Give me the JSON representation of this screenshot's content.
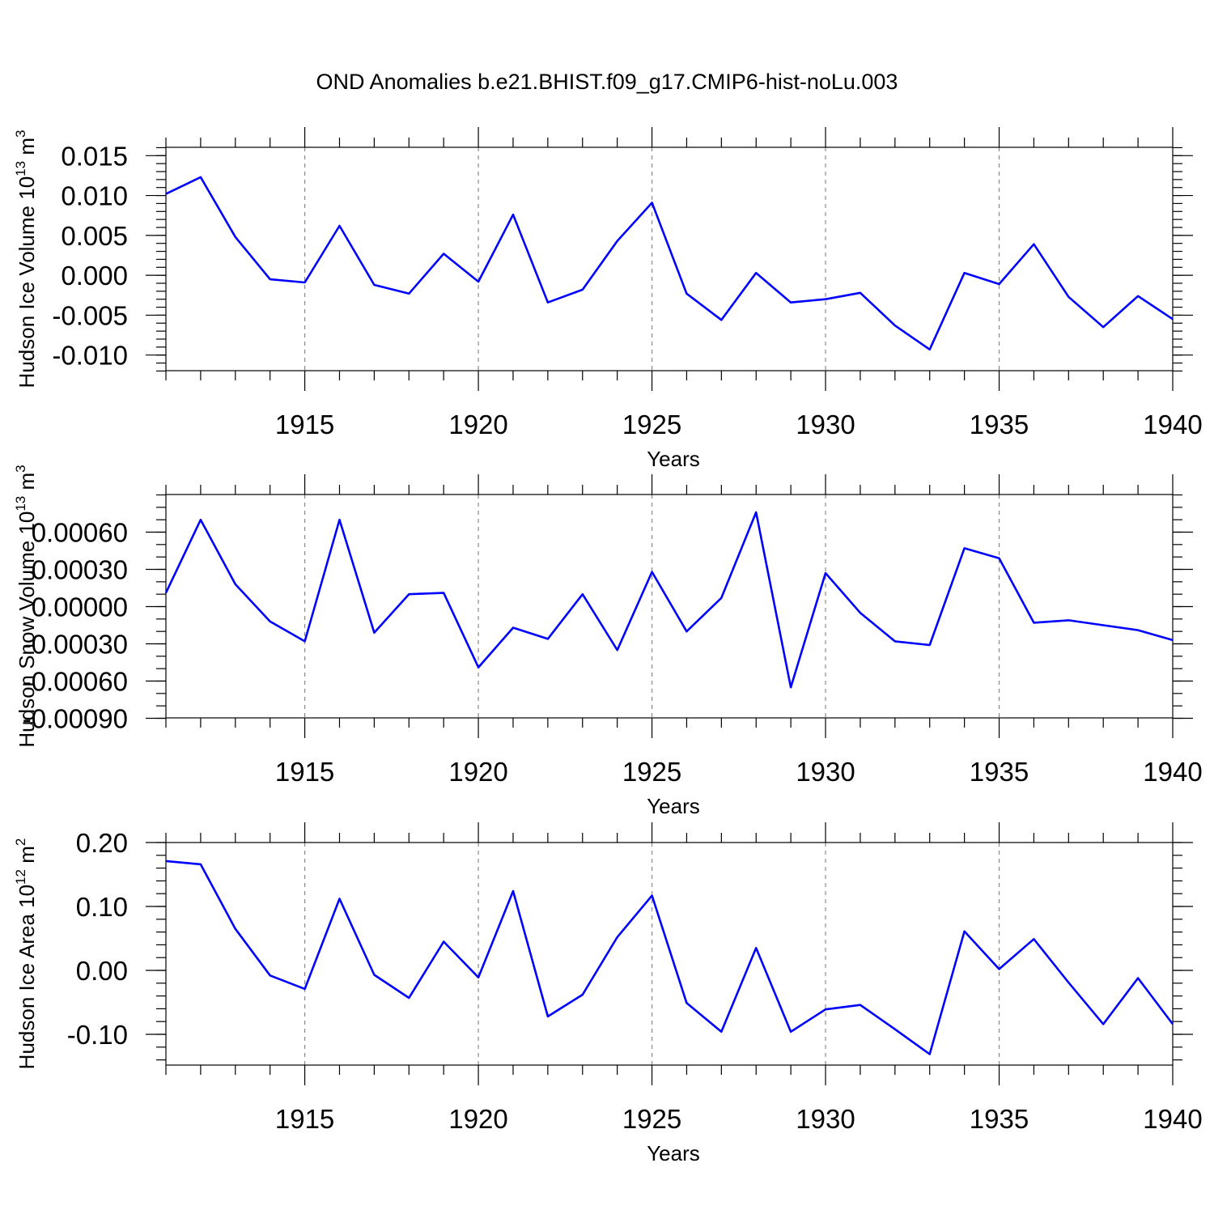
{
  "title": "OND Anomalies b.e21.BHIST.f09_g17.CMIP6-hist-noLu.003",
  "line_color": "#0000ff",
  "chart_data": [
    {
      "type": "line",
      "ylabel_base": "Hudson Ice Volume 10",
      "ylabel_exp": "13",
      "ylabel_unit": " m",
      "ylabel_unit_exp": "3",
      "xlabel": "Years",
      "xlim": [
        1911,
        1940
      ],
      "ylim": [
        -0.012,
        0.016
      ],
      "grid": "vertical dashed at major ticks",
      "xticks": [
        "1915",
        "1920",
        "1925",
        "1930",
        "1935",
        "1940"
      ],
      "yticks": [
        "0.015",
        "0.010",
        "0.005",
        "0.000",
        "-0.005",
        "-0.010"
      ],
      "x": [
        1911,
        1912,
        1913,
        1914,
        1915,
        1916,
        1917,
        1918,
        1919,
        1920,
        1921,
        1922,
        1923,
        1924,
        1925,
        1926,
        1927,
        1928,
        1929,
        1930,
        1931,
        1932,
        1933,
        1934,
        1935,
        1936,
        1937,
        1938,
        1939,
        1940
      ],
      "values": [
        0.0102,
        0.0123,
        0.0048,
        -0.0005,
        -0.0009,
        0.0062,
        -0.0012,
        -0.0023,
        0.0027,
        -0.0008,
        0.0076,
        -0.0034,
        -0.0018,
        0.0043,
        0.0091,
        -0.0023,
        -0.0056,
        0.0003,
        -0.0034,
        -0.003,
        -0.0022,
        -0.0063,
        -0.0093,
        0.0003,
        -0.0011,
        0.0039,
        -0.0027,
        -0.0065,
        -0.0026,
        -0.0055
      ]
    },
    {
      "type": "line",
      "ylabel_base": "Hudson Snow Volume 10",
      "ylabel_exp": "13",
      "ylabel_unit": " m",
      "ylabel_unit_exp": "3",
      "xlabel": "Years",
      "xlim": [
        1911,
        1940
      ],
      "ylim": [
        -0.0009,
        0.0009
      ],
      "grid": "vertical dashed at major ticks",
      "xticks": [
        "1915",
        "1920",
        "1925",
        "1930",
        "1935",
        "1940"
      ],
      "yticks": [
        "0.00060",
        "0.00030",
        "0.00000",
        "-0.00030",
        "-0.00060",
        "-0.00090"
      ],
      "x": [
        1911,
        1912,
        1913,
        1914,
        1915,
        1916,
        1917,
        1918,
        1919,
        1920,
        1921,
        1922,
        1923,
        1924,
        1925,
        1926,
        1927,
        1928,
        1929,
        1930,
        1931,
        1932,
        1933,
        1934,
        1935,
        1936,
        1937,
        1938,
        1939,
        1940
      ],
      "values": [
        0.00011,
        0.0007,
        0.00018,
        -0.00012,
        -0.00028,
        0.0007,
        -0.00021,
        0.0001,
        0.00011,
        -0.00049,
        -0.00017,
        -0.00026,
        0.0001,
        -0.00035,
        0.00028,
        -0.0002,
        7e-05,
        0.00076,
        -0.00065,
        0.00027,
        -5e-05,
        -0.00028,
        -0.00031,
        0.00047,
        0.00039,
        -0.00013,
        -0.00011,
        -0.00015,
        -0.00019,
        -0.00027
      ]
    },
    {
      "type": "line",
      "ylabel_base": "Hudson Ice Area 10",
      "ylabel_exp": "12",
      "ylabel_unit": " m",
      "ylabel_unit_exp": "2",
      "xlabel": "Years",
      "xlim": [
        1911,
        1940
      ],
      "ylim": [
        -0.15,
        0.2
      ],
      "grid": "vertical dashed at major ticks",
      "xticks": [
        "1915",
        "1920",
        "1925",
        "1930",
        "1935",
        "1940"
      ],
      "yticks": [
        "0.20",
        "0.10",
        "0.00",
        "-0.10"
      ],
      "x": [
        1911,
        1912,
        1913,
        1914,
        1915,
        1916,
        1917,
        1918,
        1919,
        1920,
        1921,
        1922,
        1923,
        1924,
        1925,
        1926,
        1927,
        1928,
        1929,
        1930,
        1931,
        1932,
        1933,
        1934,
        1935,
        1936,
        1937,
        1938,
        1939,
        1940
      ],
      "values": [
        0.171,
        0.166,
        0.065,
        -0.008,
        -0.029,
        0.112,
        -0.007,
        -0.043,
        0.045,
        -0.011,
        0.124,
        -0.072,
        -0.038,
        0.052,
        0.117,
        -0.051,
        -0.096,
        0.035,
        -0.096,
        -0.061,
        -0.054,
        -0.092,
        -0.131,
        0.061,
        0.002,
        0.049,
        -0.019,
        -0.084,
        -0.012,
        -0.084
      ]
    }
  ]
}
